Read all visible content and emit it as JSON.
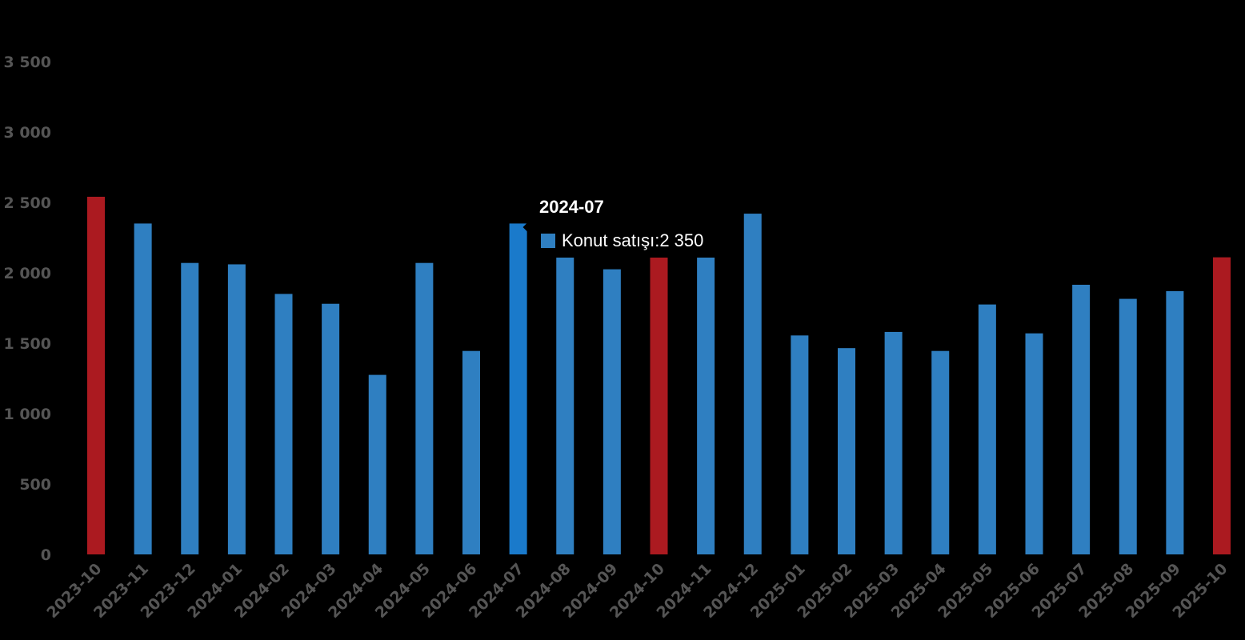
{
  "chart_data": {
    "type": "bar",
    "title": "",
    "xlabel": "",
    "ylabel": "",
    "ylim": [
      0,
      3500
    ],
    "yticks": [
      0,
      500,
      1000,
      1500,
      2000,
      2500,
      3000,
      3500
    ],
    "ytick_labels": [
      "0",
      "500",
      "1 000",
      "1 500",
      "2 000",
      "2 500",
      "3 000",
      "3 500"
    ],
    "grid": false,
    "legend": "none",
    "categories": [
      "2023-10",
      "2023-11",
      "2023-12",
      "2024-01",
      "2024-02",
      "2024-03",
      "2024-04",
      "2024-05",
      "2024-06",
      "2024-07",
      "2024-08",
      "2024-09",
      "2024-10",
      "2024-11",
      "2024-12",
      "2025-01",
      "2025-02",
      "2025-03",
      "2025-04",
      "2025-05",
      "2025-06",
      "2025-07",
      "2025-08",
      "2025-09",
      "2025-10"
    ],
    "series": [
      {
        "name": "Konut satışı",
        "values": [
          2540,
          2350,
          2070,
          2060,
          1850,
          1780,
          1275,
          2070,
          1445,
          2350,
          2200,
          2025,
          2125,
          2140,
          2420,
          1555,
          1465,
          1580,
          1445,
          1775,
          1570,
          1915,
          1815,
          1870,
          2110
        ]
      }
    ],
    "colors": {
      "default": "#2f7fc1",
      "highlight": "#ab1a20",
      "hover": "#1a7acb",
      "tick_text": "#555555"
    },
    "highlighted_categories": [
      "2023-10",
      "2024-10",
      "2025-10"
    ],
    "hovered_category": "2024-07"
  },
  "tooltip": {
    "title": "2024-07",
    "series_label": "Konut satışı",
    "value_text": "2 350",
    "separator": ": "
  }
}
